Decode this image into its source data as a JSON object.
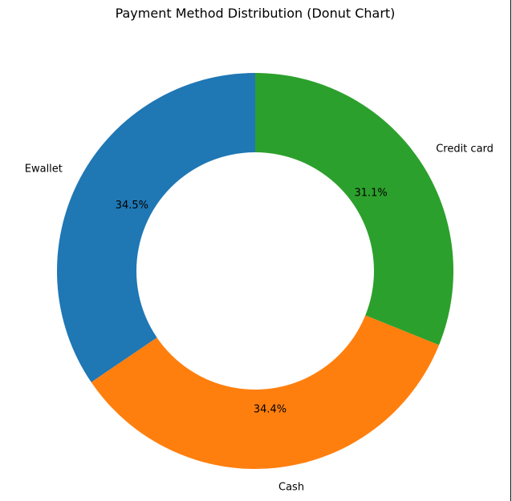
{
  "chart_data": {
    "type": "pie",
    "variant": "donut",
    "title": "Payment Method Distribution (Donut Chart)",
    "start_angle_deg": 90,
    "direction": "counterclockwise",
    "slices": [
      {
        "label": "Ewallet",
        "value": 34.5,
        "display": "34.5%",
        "color": "#1f77b4"
      },
      {
        "label": "Cash",
        "value": 34.4,
        "display": "34.4%",
        "color": "#ff7f0e"
      },
      {
        "label": "Credit card",
        "value": 31.1,
        "display": "31.1%",
        "color": "#2ca02c"
      }
    ],
    "legend": "none",
    "grid": false
  }
}
